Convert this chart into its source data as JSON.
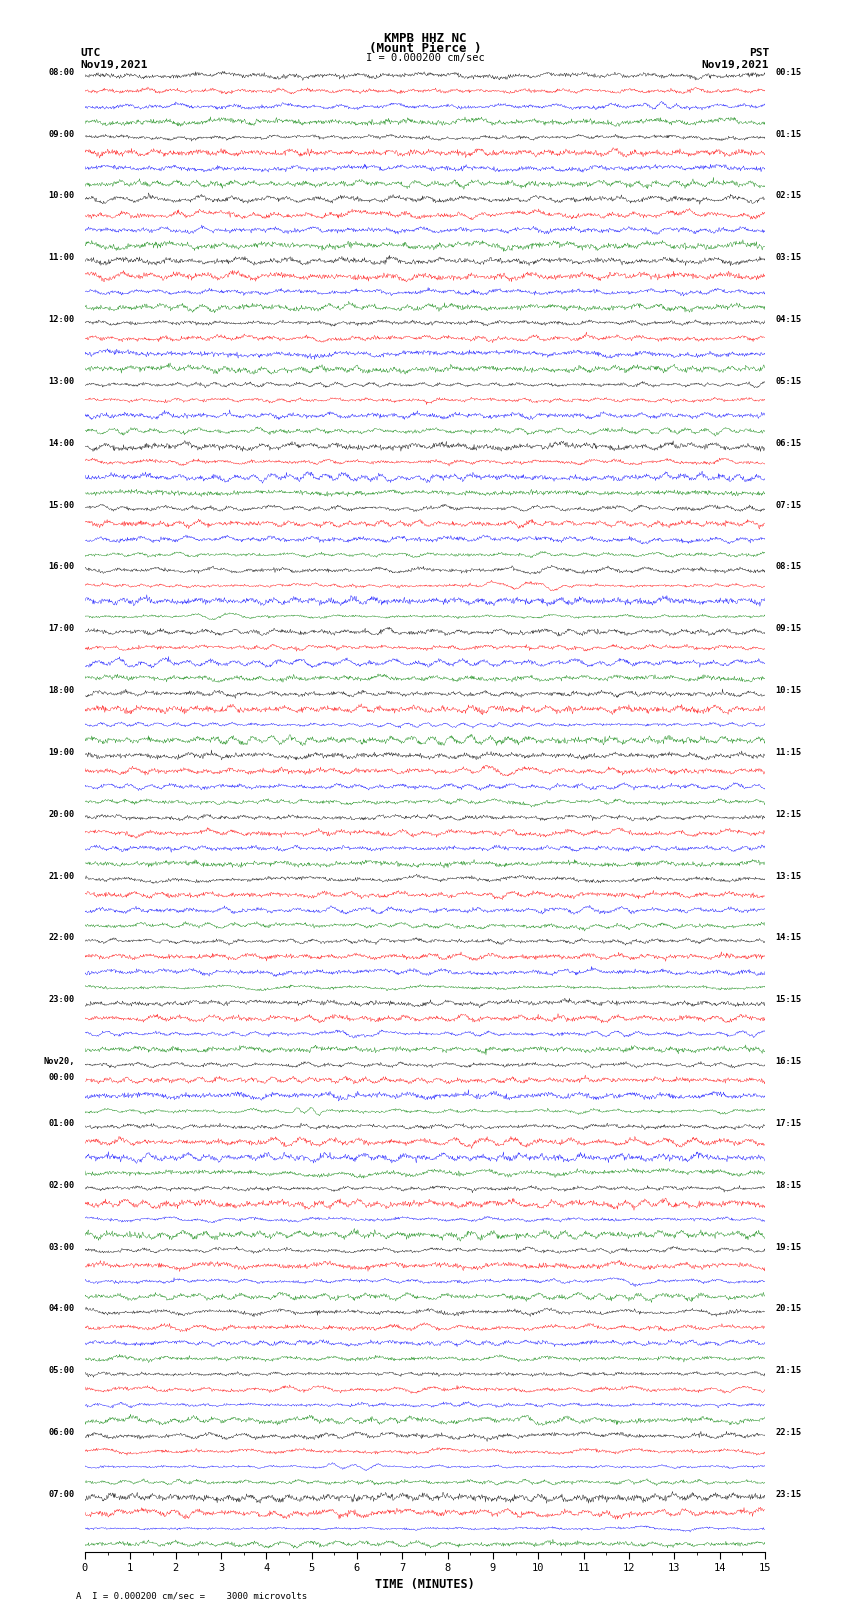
{
  "title_line1": "KMPB HHZ NC",
  "title_line2": "(Mount Pierce )",
  "scale_label": "I = 0.000200 cm/sec",
  "footer_label": "A  I = 0.000200 cm/sec =    3000 microvolts",
  "xlabel": "TIME (MINUTES)",
  "left_timezone": "UTC",
  "right_timezone": "PST",
  "left_date": "Nov19,2021",
  "right_date": "Nov19,2021",
  "colors": [
    "black",
    "red",
    "blue",
    "green"
  ],
  "bg_color": "white",
  "amplitude": 0.42,
  "num_rows": 96,
  "samples_per_row": 1200,
  "minutes_per_row": 15,
  "xmin": 0,
  "xmax": 15,
  "xticks": [
    0,
    1,
    2,
    3,
    4,
    5,
    6,
    7,
    8,
    9,
    10,
    11,
    12,
    13,
    14,
    15
  ],
  "fig_width": 8.5,
  "fig_height": 16.13,
  "left_labels": [
    "08:00",
    "09:00",
    "10:00",
    "11:00",
    "12:00",
    "13:00",
    "14:00",
    "15:00",
    "16:00",
    "17:00",
    "18:00",
    "19:00",
    "20:00",
    "21:00",
    "22:00",
    "23:00",
    "Nov20,\n00:00",
    "01:00",
    "02:00",
    "03:00",
    "04:00",
    "05:00",
    "06:00",
    "07:00"
  ],
  "right_labels": [
    "00:15",
    "01:15",
    "02:15",
    "03:15",
    "04:15",
    "05:15",
    "06:15",
    "07:15",
    "08:15",
    "09:15",
    "10:15",
    "11:15",
    "12:15",
    "13:15",
    "14:15",
    "15:15",
    "16:15",
    "17:15",
    "18:15",
    "19:15",
    "20:15",
    "21:15",
    "22:15",
    "23:15"
  ]
}
